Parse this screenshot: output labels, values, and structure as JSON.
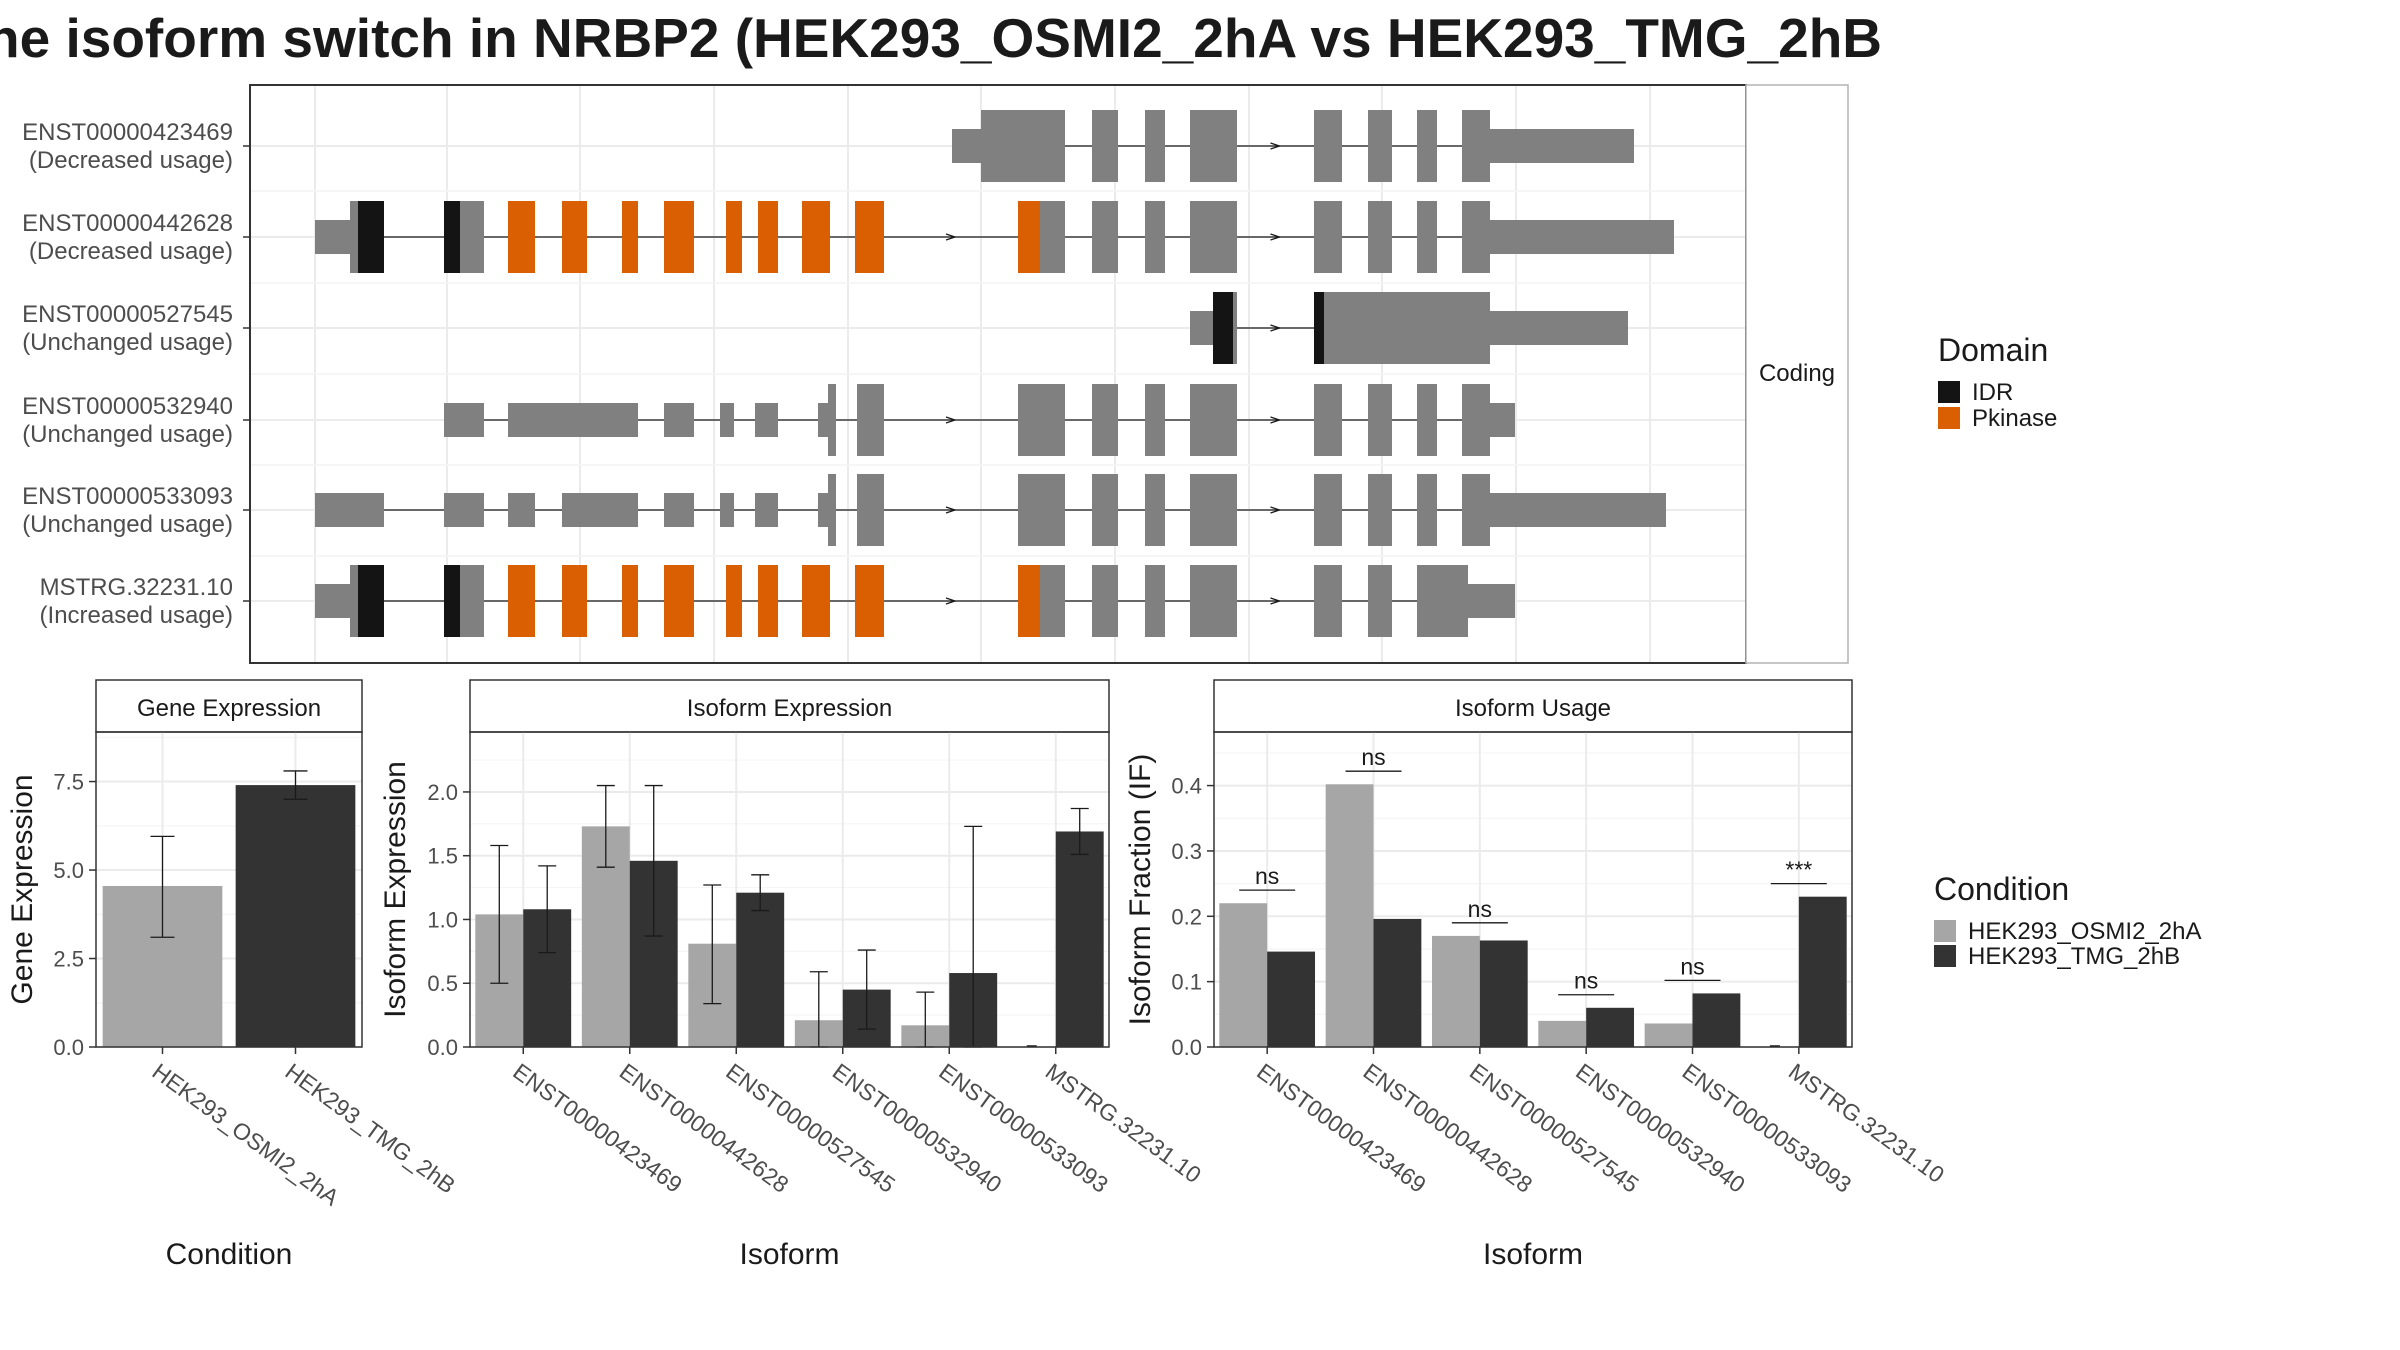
{
  "title": "he isoform switch in NRBP2 (HEK293_OSMI2_2hA vs HEK293_TMG_2hB",
  "colors": {
    "exon": "#808080",
    "IDR": "#141414",
    "Pkinase": "#D95F02",
    "condition_a": "#A6A6A6",
    "condition_b": "#333333"
  },
  "transcript_panel": {
    "strip_label": "Coding",
    "legend": {
      "title": "Domain",
      "items": [
        {
          "label": "IDR",
          "color": "#141414"
        },
        {
          "label": "Pkinase",
          "color": "#D95F02"
        }
      ]
    },
    "transcripts": [
      {
        "name": "ENST00000423469",
        "usage": "(Decreased usage)"
      },
      {
        "name": "ENST00000442628",
        "usage": "(Decreased usage)"
      },
      {
        "name": "ENST00000527545",
        "usage": "(Unchanged usage)"
      },
      {
        "name": "ENST00000532940",
        "usage": "(Unchanged usage)"
      },
      {
        "name": "ENST00000533093",
        "usage": "(Unchanged usage)"
      },
      {
        "name": "MSTRG.32231.10",
        "usage": "(Increased usage)"
      }
    ]
  },
  "condition_legend": {
    "title": "Condition",
    "items": [
      {
        "label": "HEK293_OSMI2_2hA",
        "color": "#A6A6A6"
      },
      {
        "label": "HEK293_TMG_2hB",
        "color": "#333333"
      }
    ]
  },
  "chart_data": [
    {
      "type": "bar",
      "title": "Gene Expression",
      "xlabel": "Condition",
      "ylabel": "Gene Expression",
      "categories": [
        "HEK293_OSMI2_2hA",
        "HEK293_TMG_2hB"
      ],
      "values": [
        4.55,
        7.4
      ],
      "error_low": [
        3.1,
        7.0
      ],
      "error_high": [
        5.95,
        7.8
      ],
      "ylim": [
        0,
        8.9
      ],
      "yticks": [
        0.0,
        2.5,
        5.0,
        7.5
      ],
      "ytick_labels": [
        "0.0",
        "2.5",
        "5.0",
        "7.5"
      ],
      "grid": true
    },
    {
      "type": "bar",
      "title": "Isoform Expression",
      "xlabel": "Isoform",
      "ylabel": "Isoform Expression",
      "categories": [
        "ENST00000423469",
        "ENST00000442628",
        "ENST00000527545",
        "ENST00000532940",
        "ENST00000533093",
        "MSTRG.32231.10"
      ],
      "series": [
        {
          "name": "HEK293_OSMI2_2hA",
          "values": [
            1.04,
            1.73,
            0.81,
            0.21,
            0.17,
            0.0
          ],
          "error_low": [
            0.5,
            1.41,
            0.34,
            0.0,
            0.0,
            null
          ],
          "error_high": [
            1.58,
            2.05,
            1.27,
            0.59,
            0.43,
            null
          ]
        },
        {
          "name": "HEK293_TMG_2hB",
          "values": [
            1.08,
            1.46,
            1.21,
            0.45,
            0.58,
            1.69
          ],
          "error_low": [
            0.74,
            0.87,
            1.07,
            0.14,
            0.0,
            1.51
          ],
          "error_high": [
            1.42,
            2.05,
            1.35,
            0.76,
            1.73,
            1.87
          ]
        }
      ],
      "ylim": [
        0,
        2.47
      ],
      "yticks": [
        0.0,
        0.5,
        1.0,
        1.5,
        2.0
      ],
      "ytick_labels": [
        "0.0",
        "0.5",
        "1.0",
        "1.5",
        "2.0"
      ],
      "grid": true
    },
    {
      "type": "bar",
      "title": "Isoform Usage",
      "xlabel": "Isoform",
      "ylabel": "Isoform Fraction (IF)",
      "categories": [
        "ENST00000423469",
        "ENST00000442628",
        "ENST00000527545",
        "ENST00000532940",
        "ENST00000533093",
        "MSTRG.32231.10"
      ],
      "series": [
        {
          "name": "HEK293_OSMI2_2hA",
          "values": [
            0.22,
            0.402,
            0.17,
            0.04,
            0.036,
            0.0
          ]
        },
        {
          "name": "HEK293_TMG_2hB",
          "values": [
            0.146,
            0.196,
            0.163,
            0.06,
            0.082,
            0.23
          ]
        }
      ],
      "significance": [
        {
          "label": "ns",
          "y": 0.24
        },
        {
          "label": "ns",
          "y": 0.422
        },
        {
          "label": "ns",
          "y": 0.19
        },
        {
          "label": "ns",
          "y": 0.08
        },
        {
          "label": "ns",
          "y": 0.102
        },
        {
          "label": "***",
          "y": 0.25
        }
      ],
      "ylim": [
        0,
        0.482
      ],
      "yticks": [
        0.0,
        0.1,
        0.2,
        0.3,
        0.4
      ],
      "ytick_labels": [
        "0.0",
        "0.1",
        "0.2",
        "0.3",
        "0.4"
      ],
      "grid": true
    }
  ]
}
